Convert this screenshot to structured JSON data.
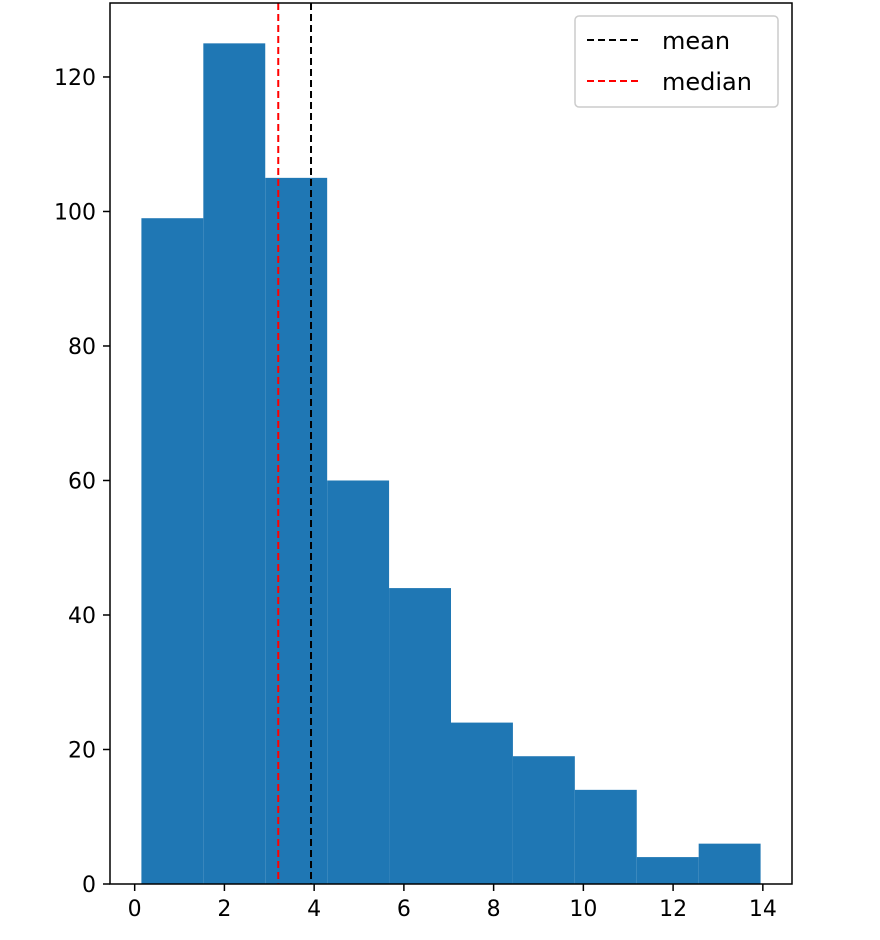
{
  "chart_data": {
    "type": "bar",
    "subtype": "histogram",
    "bar_color": "#1f77b4",
    "bins": [
      {
        "start": 0.15,
        "end": 1.53,
        "count": 99
      },
      {
        "start": 1.53,
        "end": 2.91,
        "count": 125
      },
      {
        "start": 2.91,
        "end": 4.29,
        "count": 105
      },
      {
        "start": 4.29,
        "end": 5.67,
        "count": 60
      },
      {
        "start": 5.67,
        "end": 7.05,
        "count": 44
      },
      {
        "start": 7.05,
        "end": 8.43,
        "count": 24
      },
      {
        "start": 8.43,
        "end": 9.81,
        "count": 19
      },
      {
        "start": 9.81,
        "end": 11.19,
        "count": 14
      },
      {
        "start": 11.19,
        "end": 12.57,
        "count": 4
      },
      {
        "start": 12.57,
        "end": 13.95,
        "count": 6
      }
    ],
    "reference_lines": [
      {
        "name": "mean",
        "x": 3.93,
        "color": "#000000",
        "style": "dashed"
      },
      {
        "name": "median",
        "x": 3.2,
        "color": "#ff0000",
        "style": "dashed"
      }
    ],
    "xlim": [
      -0.55,
      14.65
    ],
    "ylim": [
      0,
      131
    ],
    "x_ticks": [
      0,
      2,
      4,
      6,
      8,
      10,
      12,
      14
    ],
    "y_ticks": [
      0,
      20,
      40,
      60,
      80,
      100,
      120
    ],
    "legend": {
      "placement": "top-right",
      "entries": [
        {
          "label": "mean",
          "color": "#000000"
        },
        {
          "label": "median",
          "color": "#ff0000"
        }
      ]
    },
    "grid": false,
    "title": "",
    "xlabel": "",
    "ylabel": ""
  }
}
